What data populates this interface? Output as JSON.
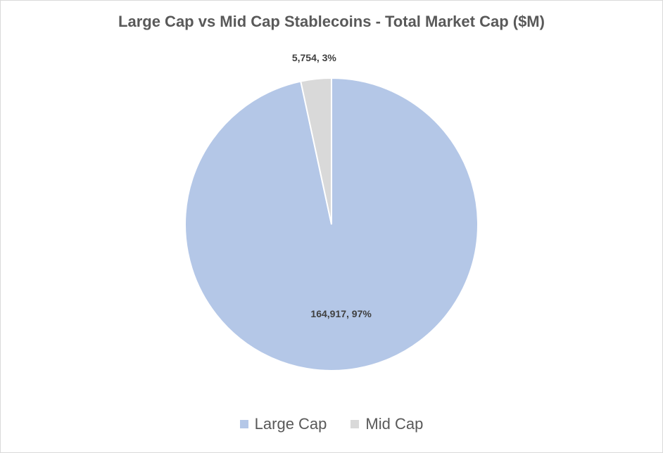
{
  "chart_data": {
    "type": "pie",
    "title": "Large Cap vs Mid Cap Stablecoins - Total Market Cap ($M)",
    "slices": [
      {
        "name": "Large Cap",
        "value": 164917,
        "percent": 97,
        "label": "164,917, 97%",
        "color": "#b4c7e7"
      },
      {
        "name": "Mid Cap",
        "value": 5754,
        "percent": 3,
        "label": "5,754, 3%",
        "color": "#d9d9d9"
      }
    ],
    "start_angle_deg": 0,
    "direction": "clockwise",
    "legend_position": "bottom"
  }
}
